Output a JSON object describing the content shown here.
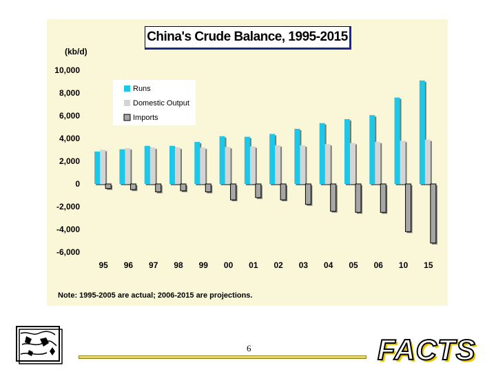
{
  "chart_data": {
    "type": "bar",
    "title": "China's Crude Balance, 1995-2015",
    "ylabel": "(kb/d)",
    "categories": [
      "95",
      "96",
      "97",
      "98",
      "99",
      "00",
      "01",
      "02",
      "03",
      "04",
      "05",
      "06",
      "10",
      "15"
    ],
    "series": [
      {
        "name": "Runs",
        "color": "#1ec6e8",
        "values": [
          2850,
          3050,
          3350,
          3350,
          3700,
          4200,
          4150,
          4400,
          4850,
          5350,
          5700,
          6050,
          7600,
          9100
        ]
      },
      {
        "name": "Domestic Output",
        "color": "#d4d4d4",
        "values": [
          3000,
          3150,
          3200,
          3200,
          3200,
          3250,
          3300,
          3400,
          3400,
          3500,
          3600,
          3700,
          3800,
          3900
        ]
      },
      {
        "name": "Imports",
        "color": "#a6a6a6",
        "values": [
          -400,
          -500,
          -700,
          -600,
          -700,
          -1400,
          -1200,
          -1400,
          -1800,
          -2400,
          -2500,
          -2500,
          -4200,
          -5200
        ]
      }
    ],
    "ylim": [
      -6000,
      10000
    ],
    "yticks": [
      "10,000",
      "8,000",
      "6,000",
      "4,000",
      "2,000",
      "0",
      "-2,000",
      "-4,000",
      "-6,000"
    ],
    "ytick_values": [
      10000,
      8000,
      6000,
      4000,
      2000,
      0,
      -2000,
      -4000,
      -6000
    ],
    "legend_position": "top-left",
    "grid": false,
    "note": "Note: 1995-2005 are actual; 2006-2015 are projections."
  },
  "footer": {
    "page_number": "6",
    "brand": "FACTS"
  },
  "icons": {
    "logo": "globe-map-icon"
  }
}
